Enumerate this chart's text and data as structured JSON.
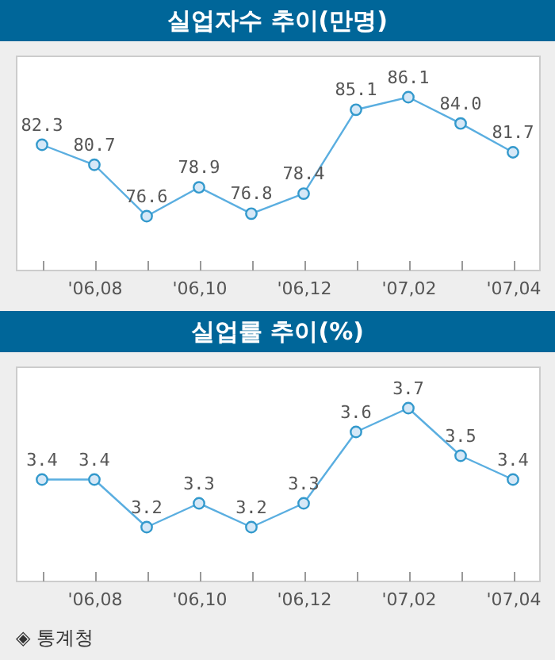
{
  "chart_data": [
    {
      "type": "line",
      "title": "실업자수 추이(만명)",
      "categories": [
        null,
        "'06,08",
        null,
        "'06,10",
        null,
        "'06,12",
        null,
        "'07,02",
        null,
        "'07,04"
      ],
      "values": [
        82.3,
        80.7,
        76.6,
        78.9,
        76.8,
        78.4,
        85.1,
        86.1,
        84.0,
        81.7
      ],
      "value_labels": [
        "82.3",
        "80.7",
        "76.6",
        "78.9",
        "76.8",
        "78.4",
        "85.1",
        "86.1",
        "84.0",
        "81.7"
      ],
      "color": "#5aaee0",
      "marker": "circle",
      "tick_labels": "x"
    },
    {
      "type": "line",
      "title": "실업률 추이(%)",
      "categories": [
        null,
        "'06,08",
        null,
        "'06,10",
        null,
        "'06,12",
        null,
        "'07,02",
        null,
        "'07,04"
      ],
      "values": [
        3.4,
        3.4,
        3.2,
        3.3,
        3.2,
        3.3,
        3.6,
        3.7,
        3.5,
        3.4
      ],
      "color": "#5aaee0",
      "marker": "circle",
      "data_labels": true,
      "tick_labels": "x",
      "annotations": [
        "◈ 통계청"
      ]
    }
  ]
}
